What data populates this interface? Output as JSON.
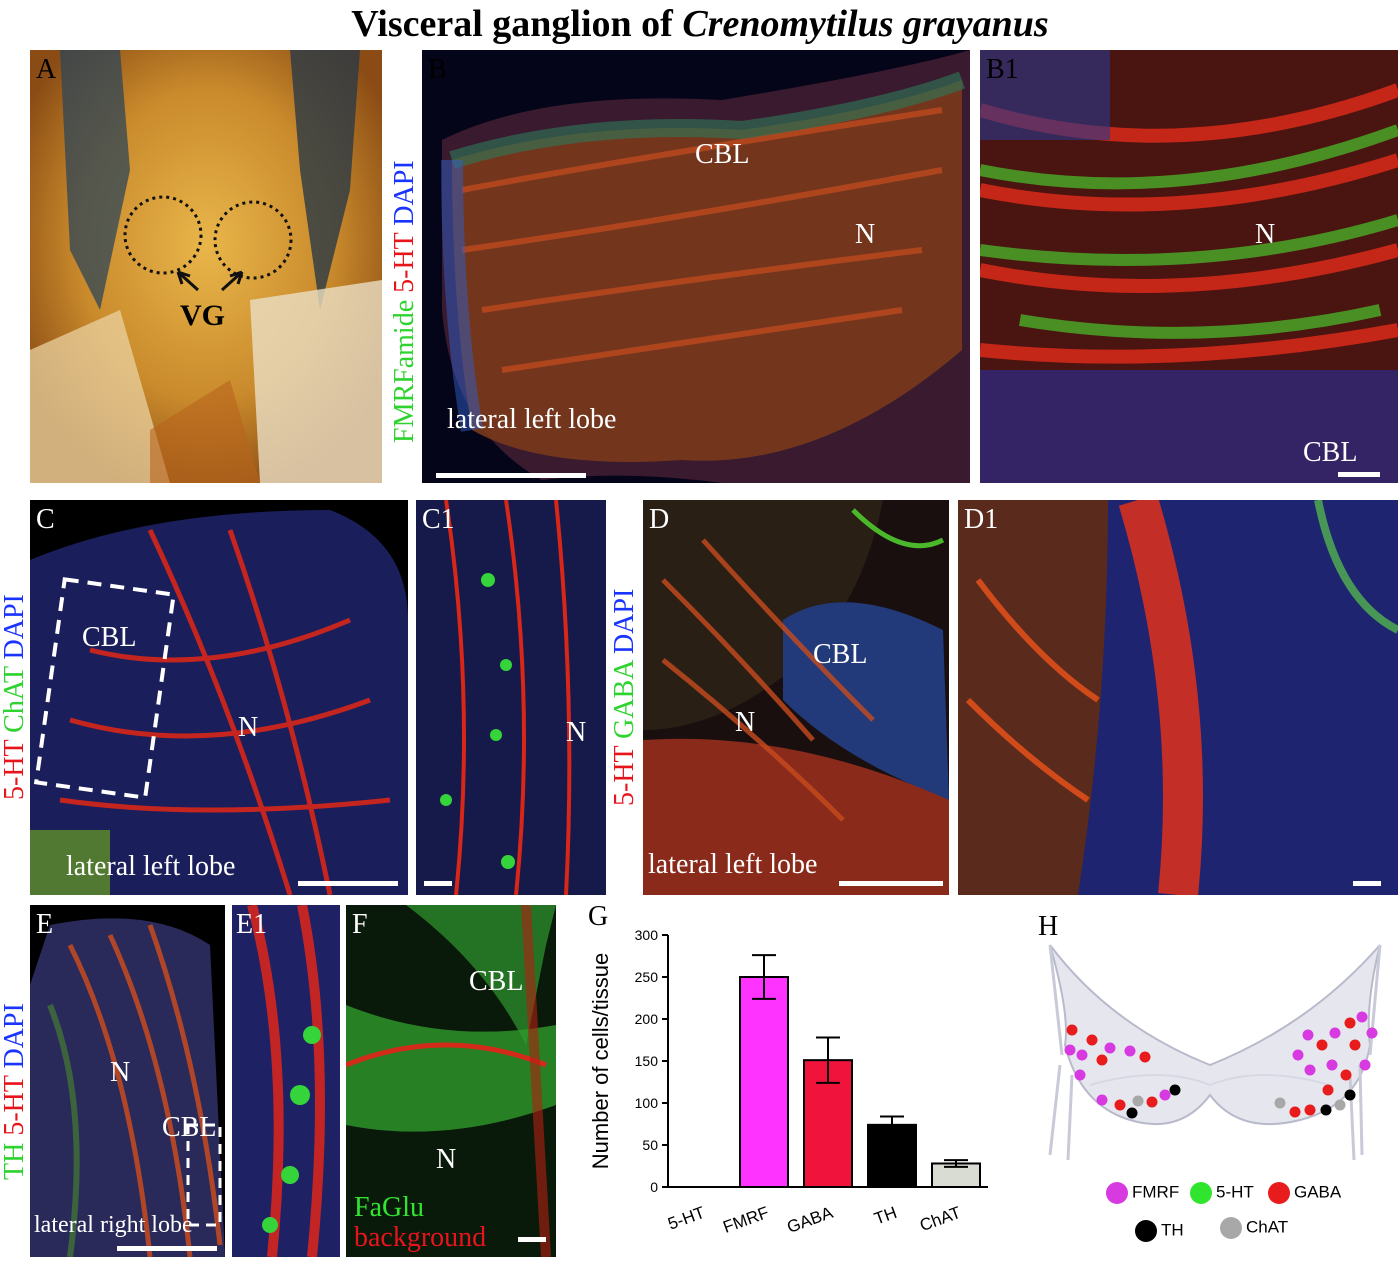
{
  "figure": {
    "title_prefix": "Visceral ganglion of ",
    "title_species": "Crenomytilus grayanus"
  },
  "panels": {
    "A": {
      "label": "A",
      "vg": "VG"
    },
    "B": {
      "label": "B",
      "stain_green": "FMRFamide",
      "stain_red": "5-HT",
      "stain_blue": "DAPI",
      "cbl": "CBL",
      "n": "N",
      "lobe": "lateral left lobe"
    },
    "B1": {
      "label": "B1",
      "n": "N",
      "cbl": "CBL"
    },
    "C": {
      "label": "C",
      "stain_red": "5-HT",
      "stain_green": "ChAT",
      "stain_blue": "DAPI",
      "cbl": "CBL",
      "n": "N",
      "lobe": "lateral left lobe"
    },
    "C1": {
      "label": "C1",
      "n": "N"
    },
    "D": {
      "label": "D",
      "stain_red": "5-HT",
      "stain_green": "GABA",
      "stain_blue": "DAPI",
      "cbl": "CBL",
      "n": "N",
      "lobe": "lateral left lobe"
    },
    "D1": {
      "label": "D1"
    },
    "E": {
      "label": "E",
      "stain_green": "TH",
      "stain_red": "5-HT",
      "stain_blue": "DAPI",
      "n": "N",
      "cbl": "CBL",
      "lobe": "lateral right lobe"
    },
    "E1": {
      "label": "E1"
    },
    "F": {
      "label": "F",
      "cbl": "CBL",
      "n": "N",
      "legend_green": "FaGlu",
      "legend_red": "background"
    },
    "G": {
      "label": "G"
    },
    "H": {
      "label": "H"
    }
  },
  "chart_data": {
    "type": "bar",
    "categories": [
      "5-HT",
      "FMRF",
      "GABA",
      "TH",
      "ChAT"
    ],
    "values": [
      0,
      250,
      151,
      74,
      28
    ],
    "errors": [
      0,
      26,
      27,
      10,
      4
    ],
    "colors": [
      "#ff33ff",
      "#ff33ff",
      "#f0143c",
      "#000000",
      "#d9dcd2"
    ],
    "title": "",
    "xlabel": "",
    "ylabel": "Number of cells/tissue",
    "ylim": [
      0,
      300
    ],
    "yticks": [
      0,
      50,
      100,
      150,
      200,
      250,
      300
    ],
    "grid": false
  },
  "legend_h": {
    "items": [
      {
        "label": "FMRF",
        "color": "#d63ae0"
      },
      {
        "label": "5-HT",
        "color": "#31e52e"
      },
      {
        "label": "GABA",
        "color": "#e81c1c"
      },
      {
        "label": "TH",
        "color": "#000000"
      },
      {
        "label": "ChAT",
        "color": "#a8a8a8"
      }
    ]
  }
}
